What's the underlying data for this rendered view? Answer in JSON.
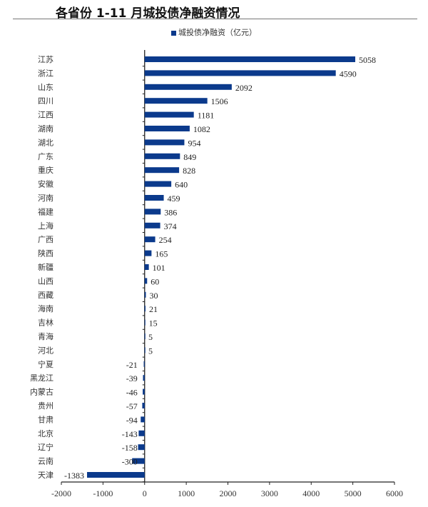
{
  "chart_data": {
    "type": "bar",
    "orientation": "horizontal",
    "title": "各省份 1-11 月城投债净融资情况",
    "legend": {
      "position": "top-center",
      "entries": [
        "城投债净融资（亿元）"
      ]
    },
    "series": [
      {
        "name": "城投债净融资（亿元）",
        "color": "#0b3a8c",
        "values": [
          5058,
          4590,
          2092,
          1506,
          1181,
          1082,
          954,
          849,
          828,
          640,
          459,
          386,
          374,
          254,
          165,
          101,
          60,
          30,
          21,
          15,
          5,
          5,
          -21,
          -39,
          -46,
          -57,
          -94,
          -143,
          -158,
          -300,
          -1383
        ]
      }
    ],
    "categories": [
      "江苏",
      "浙江",
      "山东",
      "四川",
      "江西",
      "湖南",
      "湖北",
      "广东",
      "重庆",
      "安徽",
      "河南",
      "福建",
      "上海",
      "广西",
      "陕西",
      "新疆",
      "山西",
      "西藏",
      "海南",
      "吉林",
      "青海",
      "河北",
      "宁夏",
      "黑龙江",
      "内蒙古",
      "贵州",
      "甘肃",
      "北京",
      "辽宁",
      "云南",
      "天津"
    ],
    "xlim": [
      -2000,
      6000
    ],
    "xticks": [
      -2000,
      -1000,
      0,
      1000,
      2000,
      3000,
      4000,
      5000,
      6000
    ],
    "grid": false,
    "data_labels": true
  }
}
